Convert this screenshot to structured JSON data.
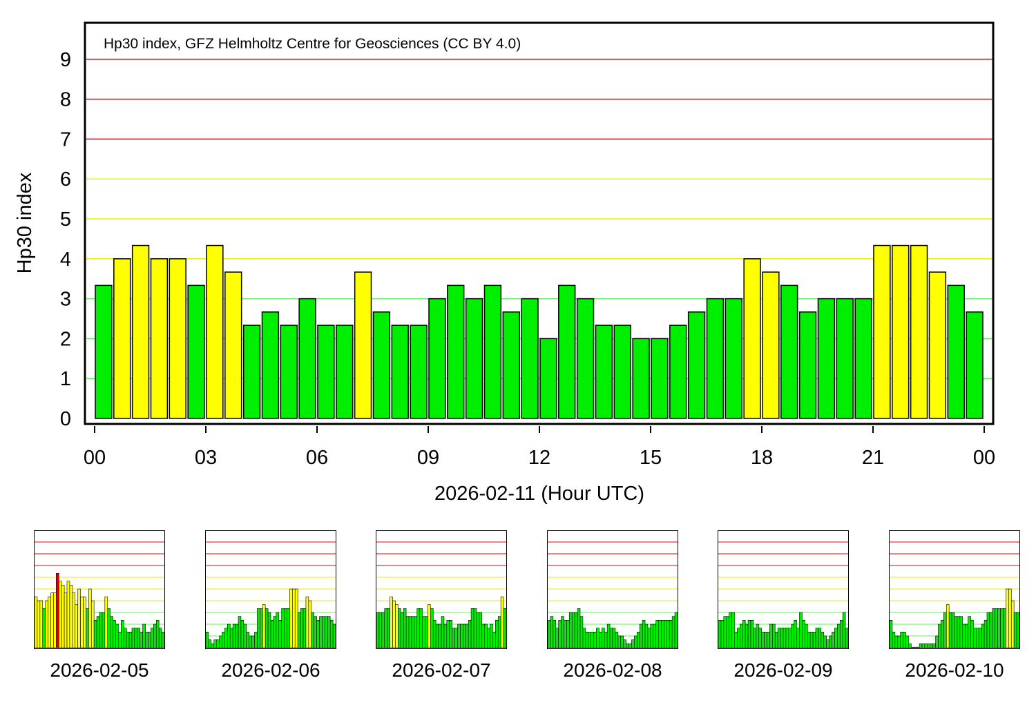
{
  "colors": {
    "quiet": "#00ee00",
    "active": "#ffff00",
    "storm": "#dd0000",
    "grid_green": "#66ee66",
    "grid_yellow": "#eeee00",
    "grid_red": "#ee0000"
  },
  "chart_data": [
    {
      "type": "bar",
      "annotation": "Hp30 index, GFZ Helmholtz Centre for Geosciences (CC BY 4.0)",
      "xlabel": "2026-02-11 (Hour UTC)",
      "ylabel": "Hp30 index",
      "ylim": [
        0,
        9.9
      ],
      "y_ticks": [
        "0",
        "1",
        "2",
        "3",
        "4",
        "5",
        "6",
        "7",
        "8",
        "9"
      ],
      "x_ticks": [
        "00",
        "03",
        "06",
        "09",
        "12",
        "15",
        "18",
        "21",
        "00"
      ],
      "x_range_hours": [
        0,
        24
      ],
      "bar_interval_hours": 0.5,
      "grid": "horizontal lines at each integer, colored green (1-3), yellow (4-6), red (7-9)",
      "values": [
        3.333,
        4.0,
        4.333,
        4.0,
        4.0,
        3.333,
        4.333,
        3.667,
        2.333,
        2.667,
        2.333,
        3.0,
        2.333,
        2.333,
        3.667,
        2.667,
        2.333,
        2.333,
        3.0,
        3.333,
        3.0,
        3.333,
        2.667,
        3.0,
        2.0,
        3.333,
        3.0,
        2.333,
        2.333,
        2.0,
        2.0,
        2.333,
        2.667,
        3.0,
        3.0,
        4.0,
        3.667,
        3.333,
        2.667,
        3.0,
        3.0,
        3.0,
        4.333,
        4.333,
        4.333,
        3.667,
        3.333,
        2.667
      ]
    },
    {
      "type": "bar",
      "date_label": "2026-02-05",
      "ylim": [
        0,
        10
      ],
      "values": [
        4.333,
        4.0,
        4.0,
        3.333,
        4.0,
        4.333,
        4.667,
        4.667,
        6.333,
        5.667,
        5.333,
        4.667,
        5.667,
        5.333,
        4.667,
        3.667,
        5.0,
        4.333,
        4.333,
        3.333,
        5.0,
        4.0,
        2.333,
        2.667,
        3.0,
        3.0,
        4.333,
        3.333,
        2.667,
        2.333,
        2.0,
        1.333,
        2.333,
        1.667,
        1.333,
        1.333,
        1.667,
        1.667,
        1.667,
        1.333,
        2.0,
        1.333,
        1.333,
        1.667,
        2.0,
        2.333,
        1.667,
        1.333
      ]
    },
    {
      "type": "bar",
      "date_label": "2026-02-06",
      "ylim": [
        0,
        10
      ],
      "values": [
        1.333,
        0.667,
        0.333,
        0.667,
        0.667,
        1.0,
        1.333,
        1.667,
        2.0,
        1.667,
        2.0,
        2.0,
        2.667,
        2.333,
        2.0,
        1.333,
        1.0,
        1.0,
        1.333,
        3.333,
        3.333,
        3.667,
        3.333,
        3.0,
        2.333,
        2.667,
        3.0,
        2.333,
        3.333,
        3.333,
        3.333,
        5.0,
        5.0,
        5.0,
        3.0,
        3.333,
        3.333,
        4.333,
        4.0,
        3.0,
        2.667,
        2.333,
        2.667,
        2.667,
        2.667,
        2.667,
        2.333,
        2.0
      ]
    },
    {
      "type": "bar",
      "date_label": "2026-02-07",
      "ylim": [
        0,
        10
      ],
      "values": [
        3.0,
        3.0,
        3.0,
        3.333,
        3.333,
        4.333,
        4.0,
        3.667,
        3.333,
        3.0,
        3.333,
        2.667,
        2.667,
        2.667,
        2.667,
        3.333,
        3.333,
        2.667,
        2.667,
        3.667,
        3.333,
        2.333,
        2.0,
        2.0,
        2.667,
        2.0,
        2.333,
        2.333,
        1.667,
        1.667,
        2.0,
        2.0,
        2.0,
        2.0,
        2.333,
        3.333,
        3.333,
        3.0,
        3.0,
        2.0,
        2.0,
        1.667,
        2.0,
        1.333,
        2.333,
        2.667,
        4.333,
        3.333
      ]
    },
    {
      "type": "bar",
      "date_label": "2026-02-08",
      "ylim": [
        0,
        10
      ],
      "values": [
        2.333,
        2.667,
        2.333,
        1.667,
        2.333,
        2.667,
        2.333,
        2.333,
        3.0,
        3.0,
        3.0,
        3.333,
        2.667,
        1.667,
        1.333,
        1.333,
        1.333,
        1.333,
        1.667,
        1.333,
        1.667,
        1.333,
        2.0,
        1.667,
        1.667,
        1.333,
        1.0,
        1.0,
        0.667,
        0.333,
        0.333,
        0.667,
        1.0,
        1.333,
        2.0,
        2.333,
        2.0,
        1.667,
        2.0,
        2.0,
        2.333,
        2.333,
        2.333,
        2.333,
        2.333,
        2.333,
        2.667,
        3.0
      ]
    },
    {
      "type": "bar",
      "date_label": "2026-02-09",
      "ylim": [
        0,
        10
      ],
      "values": [
        2.333,
        2.333,
        2.667,
        2.667,
        3.0,
        3.0,
        1.333,
        1.667,
        2.0,
        2.333,
        2.0,
        2.333,
        2.333,
        1.667,
        2.0,
        1.667,
        1.333,
        1.333,
        1.333,
        2.0,
        2.0,
        1.333,
        1.667,
        1.667,
        1.667,
        1.667,
        1.667,
        2.0,
        2.333,
        1.667,
        3.0,
        2.333,
        2.0,
        1.333,
        1.333,
        1.333,
        1.667,
        1.667,
        1.333,
        1.0,
        0.667,
        1.0,
        1.333,
        1.667,
        2.0,
        2.333,
        3.0,
        1.667
      ]
    },
    {
      "type": "bar",
      "date_label": "2026-02-10",
      "ylim": [
        0,
        10
      ],
      "values": [
        2.333,
        1.333,
        1.0,
        1.0,
        1.333,
        1.333,
        1.0,
        0.333,
        0,
        0,
        0,
        0.333,
        0.333,
        0.333,
        0.333,
        0.333,
        0.333,
        1.0,
        2.0,
        2.333,
        3.0,
        3.667,
        3.0,
        3.0,
        2.667,
        2.667,
        2.667,
        2.0,
        2.0,
        2.667,
        2.333,
        1.667,
        1.667,
        1.667,
        2.0,
        2.333,
        3.0,
        3.0,
        3.333,
        3.333,
        3.333,
        3.333,
        3.333,
        5.0,
        5.0,
        4.0,
        3.0,
        3.0
      ]
    }
  ]
}
